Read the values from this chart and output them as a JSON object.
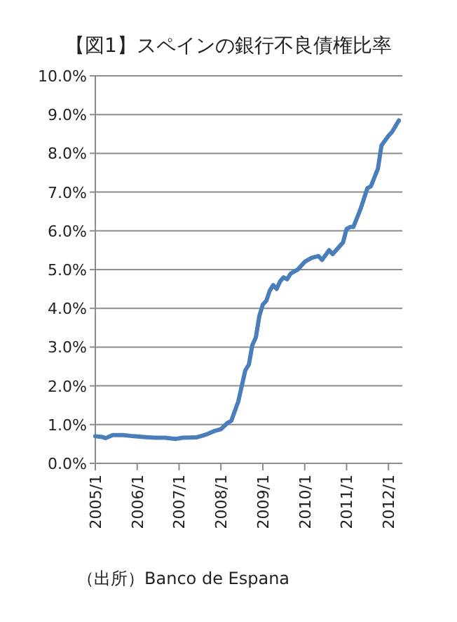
{
  "chart_data": {
    "type": "line",
    "title": "【図1】スペインの銀行不良債権比率",
    "annotations": [
      "（出所）Banco de Espana"
    ],
    "grid": "y",
    "marker": "none",
    "line_style": "solid",
    "xlim": [
      "2005-01",
      "2012-05"
    ],
    "xticks": [
      {
        "value": "2005-01",
        "label": "2005/1"
      },
      {
        "value": "2006-01",
        "label": "2006/1"
      },
      {
        "value": "2007-01",
        "label": "2007/1"
      },
      {
        "value": "2008-01",
        "label": "2008/1"
      },
      {
        "value": "2009-01",
        "label": "2009/1"
      },
      {
        "value": "2010-01",
        "label": "2010/1"
      },
      {
        "value": "2011-01",
        "label": "2011/1"
      },
      {
        "value": "2012-01",
        "label": "2012/1"
      }
    ],
    "ylim": [
      0,
      10
    ],
    "yticks": [
      {
        "value": 0,
        "label": "0.0%"
      },
      {
        "value": 1,
        "label": "1.0%"
      },
      {
        "value": 2,
        "label": "2.0%"
      },
      {
        "value": 3,
        "label": "3.0%"
      },
      {
        "value": 4,
        "label": "4.0%"
      },
      {
        "value": 5,
        "label": "5.0%"
      },
      {
        "value": 6,
        "label": "6.0%"
      },
      {
        "value": 7,
        "label": "7.0%"
      },
      {
        "value": 8,
        "label": "8.0%"
      },
      {
        "value": 9,
        "label": "9.0%"
      },
      {
        "value": 10,
        "label": "10.0%"
      }
    ],
    "x": [
      "2005-01",
      "2005-03",
      "2005-04",
      "2005-06",
      "2005-09",
      "2005-12",
      "2006-03",
      "2006-06",
      "2006-09",
      "2006-12",
      "2007-02",
      "2007-06",
      "2007-09",
      "2007-11",
      "2008-01",
      "2008-03",
      "2008-04",
      "2008-05",
      "2008-06",
      "2008-07",
      "2008-08",
      "2008-09",
      "2008-10",
      "2008-11",
      "2008-12",
      "2009-01",
      "2009-02",
      "2009-03",
      "2009-04",
      "2009-05",
      "2009-06",
      "2009-07",
      "2009-08",
      "2009-09",
      "2009-10",
      "2009-11",
      "2010-01",
      "2010-03",
      "2010-05",
      "2010-06",
      "2010-08",
      "2010-09",
      "2010-11",
      "2010-12",
      "2011-01",
      "2011-02",
      "2011-03",
      "2011-05",
      "2011-07",
      "2011-08",
      "2011-10",
      "2011-11",
      "2012-01",
      "2012-02",
      "2012-04"
    ],
    "series": [
      {
        "color": "#4a7ebb",
        "values": [
          0.7,
          0.68,
          0.65,
          0.73,
          0.73,
          0.7,
          0.68,
          0.66,
          0.66,
          0.63,
          0.66,
          0.67,
          0.75,
          0.83,
          0.88,
          1.05,
          1.1,
          1.35,
          1.6,
          2.0,
          2.4,
          2.55,
          3.05,
          3.25,
          3.8,
          4.1,
          4.2,
          4.45,
          4.6,
          4.5,
          4.7,
          4.8,
          4.75,
          4.9,
          4.95,
          5.0,
          5.2,
          5.3,
          5.35,
          5.25,
          5.5,
          5.4,
          5.6,
          5.7,
          6.05,
          6.1,
          6.1,
          6.55,
          7.1,
          7.15,
          7.6,
          8.2,
          8.45,
          8.55,
          8.85
        ]
      }
    ]
  }
}
